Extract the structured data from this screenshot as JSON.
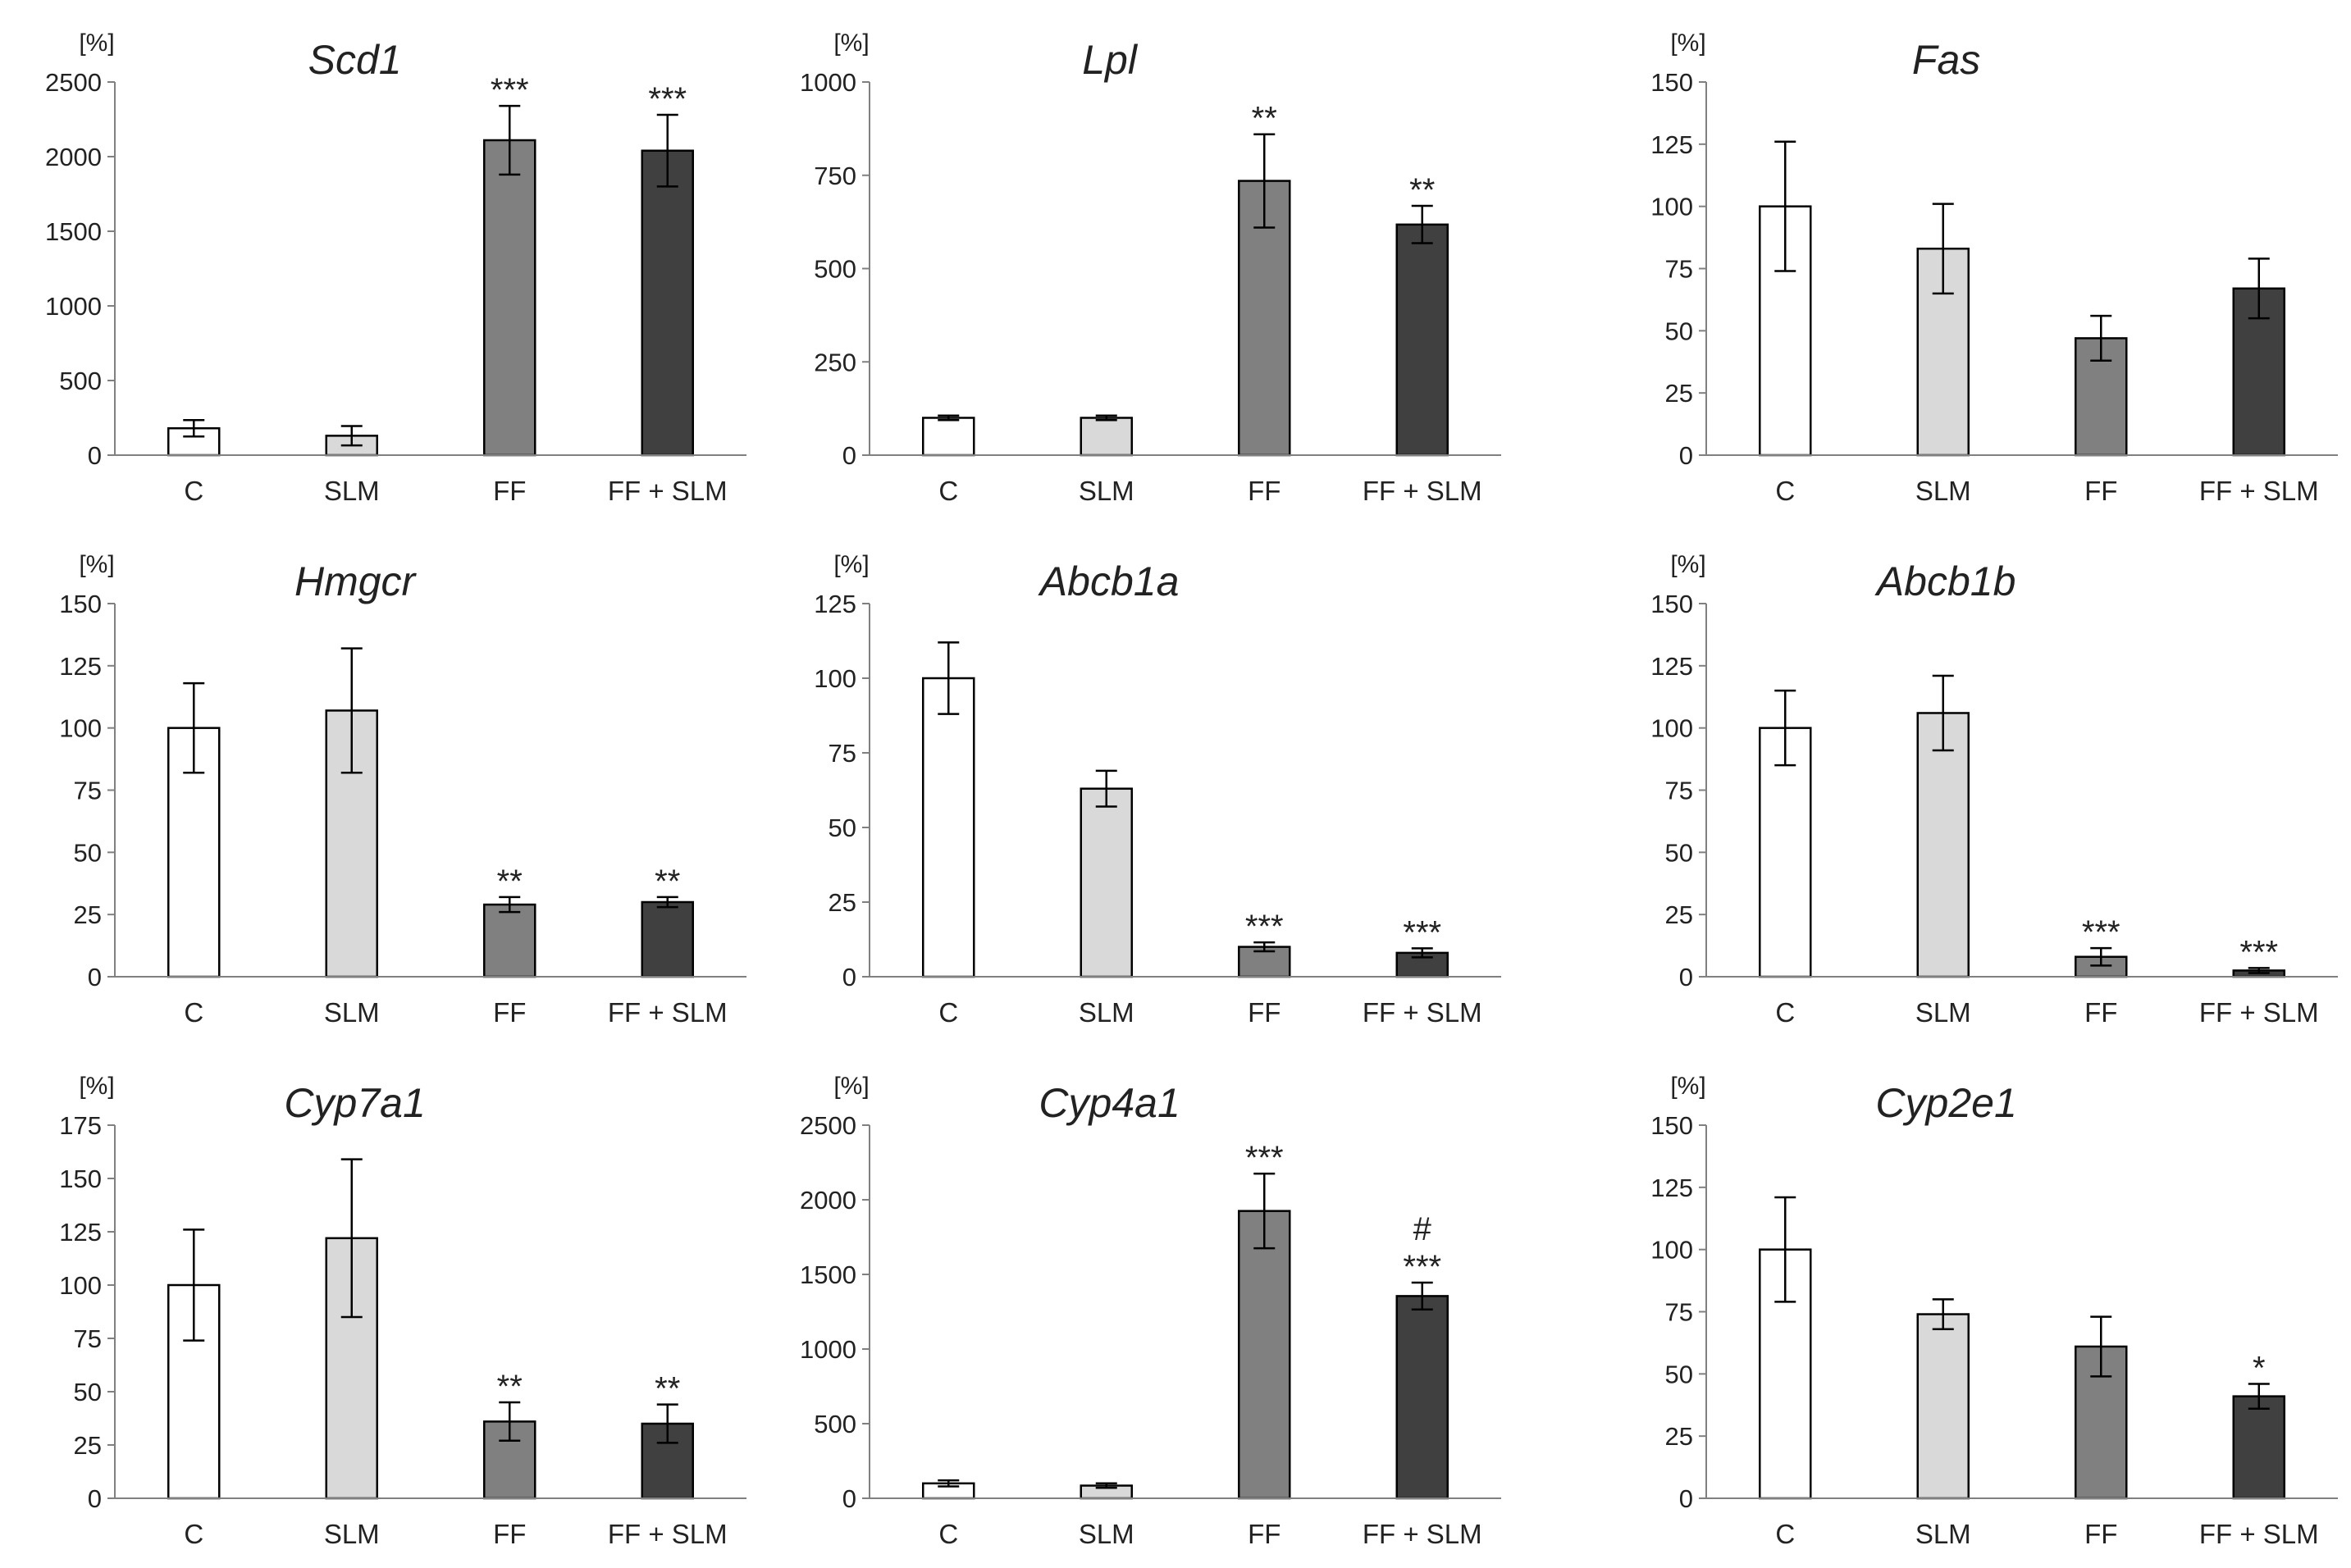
{
  "chart_data": [
    {
      "type": "bar",
      "title": "Scd1",
      "ylabel": "[%]",
      "categories": [
        "C",
        "SLM",
        "FF",
        "FF + SLM"
      ],
      "values": [
        180,
        130,
        2110,
        2040
      ],
      "errors": [
        55,
        65,
        230,
        240
      ],
      "ylim": [
        0,
        2500
      ],
      "yticks": [
        0,
        500,
        1000,
        1500,
        2000,
        2500
      ],
      "significance": [
        "",
        "",
        "***",
        "***"
      ]
    },
    {
      "type": "bar",
      "title": "Lpl",
      "ylabel": "[%]",
      "categories": [
        "C",
        "SLM",
        "FF",
        "FF + SLM"
      ],
      "values": [
        100,
        100,
        735,
        618
      ],
      "errors": [
        6,
        6,
        125,
        50
      ],
      "ylim": [
        0,
        1000
      ],
      "yticks": [
        0,
        250,
        500,
        750,
        1000
      ],
      "significance": [
        "",
        "",
        "**",
        "**"
      ]
    },
    {
      "type": "bar",
      "title": "Fas",
      "ylabel": "[%]",
      "categories": [
        "C",
        "SLM",
        "FF",
        "FF + SLM"
      ],
      "values": [
        100,
        83,
        47,
        67
      ],
      "errors": [
        26,
        18,
        9,
        12
      ],
      "ylim": [
        0,
        150
      ],
      "yticks": [
        0,
        25,
        50,
        75,
        100,
        125,
        150
      ],
      "significance": [
        "",
        "",
        "",
        ""
      ]
    },
    {
      "type": "bar",
      "title": "Hmgcr",
      "ylabel": "[%]",
      "categories": [
        "C",
        "SLM",
        "FF",
        "FF + SLM"
      ],
      "values": [
        100,
        107,
        29,
        30
      ],
      "errors": [
        18,
        25,
        3,
        2
      ],
      "ylim": [
        0,
        150
      ],
      "yticks": [
        0,
        25,
        50,
        75,
        100,
        125,
        150
      ],
      "significance": [
        "",
        "",
        "**",
        "**"
      ]
    },
    {
      "type": "bar",
      "title": "Abcb1a",
      "ylabel": "[%]",
      "categories": [
        "C",
        "SLM",
        "FF",
        "FF + SLM"
      ],
      "values": [
        100,
        63,
        10,
        8
      ],
      "errors": [
        12,
        6,
        1.5,
        1.5
      ],
      "ylim": [
        0,
        125
      ],
      "yticks": [
        0,
        25,
        50,
        75,
        100,
        125
      ],
      "significance": [
        "",
        "",
        "***",
        "***"
      ]
    },
    {
      "type": "bar",
      "title": "Abcb1b",
      "ylabel": "[%]",
      "categories": [
        "C",
        "SLM",
        "FF",
        "FF + SLM"
      ],
      "values": [
        100,
        106,
        8,
        2.5
      ],
      "errors": [
        15,
        15,
        3.5,
        1
      ],
      "ylim": [
        0,
        150
      ],
      "yticks": [
        0,
        25,
        50,
        75,
        100,
        125,
        150
      ],
      "significance": [
        "",
        "",
        "***",
        "***"
      ]
    },
    {
      "type": "bar",
      "title": "Cyp7a1",
      "ylabel": "[%]",
      "categories": [
        "C",
        "SLM",
        "FF",
        "FF + SLM"
      ],
      "values": [
        100,
        122,
        36,
        35
      ],
      "errors": [
        26,
        37,
        9,
        9
      ],
      "ylim": [
        0,
        175
      ],
      "yticks": [
        0,
        25,
        50,
        75,
        100,
        125,
        150,
        175
      ],
      "significance": [
        "",
        "",
        "**",
        "**"
      ]
    },
    {
      "type": "bar",
      "title": "Cyp4a1",
      "ylabel": "[%]",
      "categories": [
        "C",
        "SLM",
        "FF",
        "FF + SLM"
      ],
      "values": [
        100,
        85,
        1925,
        1355
      ],
      "errors": [
        20,
        15,
        250,
        90
      ],
      "ylim": [
        0,
        2500
      ],
      "yticks": [
        0,
        500,
        1000,
        1500,
        2000,
        2500
      ],
      "significance": [
        "",
        "",
        "***",
        "***"
      ],
      "secondary_significance": [
        "",
        "",
        "",
        "#"
      ]
    },
    {
      "type": "bar",
      "title": "Cyp2e1",
      "ylabel": "[%]",
      "categories": [
        "C",
        "SLM",
        "FF",
        "FF + SLM"
      ],
      "values": [
        100,
        74,
        61,
        41
      ],
      "errors": [
        21,
        6,
        12,
        5
      ],
      "ylim": [
        0,
        150
      ],
      "yticks": [
        0,
        25,
        50,
        75,
        100,
        125,
        150
      ],
      "significance": [
        "",
        "",
        "",
        "*"
      ]
    }
  ],
  "colors": {
    "bars": [
      "#ffffff",
      "#d9d9d9",
      "#808080",
      "#404040"
    ],
    "stroke": "#000000",
    "axis": "#808080"
  }
}
